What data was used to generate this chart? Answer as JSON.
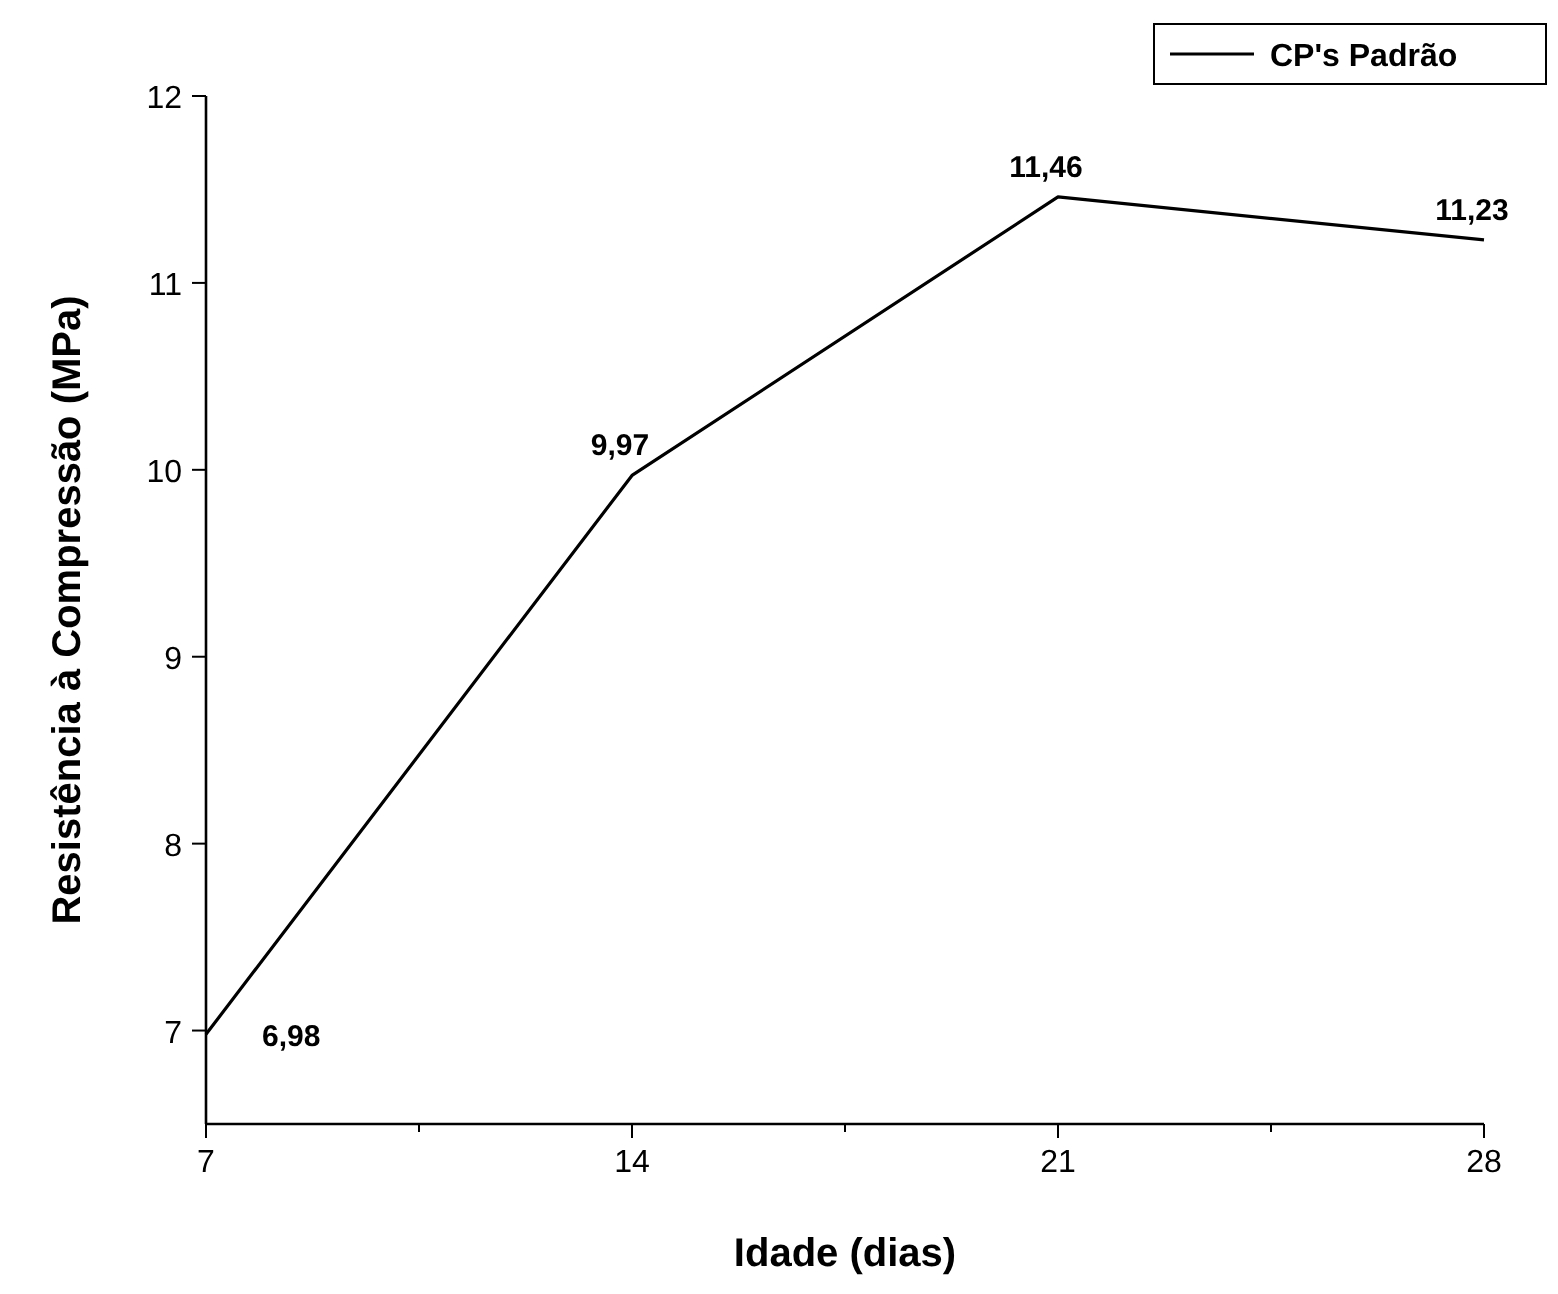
{
  "chart_data": {
    "type": "line",
    "xlabel": "Idade (dias)",
    "ylabel": "Resistência à Compressão (MPa)",
    "x": [
      7,
      14,
      21,
      28
    ],
    "series": [
      {
        "name": "CP's Padrão",
        "color": "#000000",
        "values": [
          6.98,
          9.97,
          11.46,
          11.23
        ],
        "value_labels": [
          "6,98",
          "9,97",
          "11,46",
          "11,23"
        ]
      }
    ],
    "xlim": [
      7,
      28
    ],
    "xticks": [
      7,
      {
        "value": 10.5,
        "label": null
      },
      14,
      {
        "value": 17.5,
        "label": null
      },
      21,
      {
        "value": 24.5,
        "label": null
      },
      28
    ],
    "ylim": [
      6.5,
      12
    ],
    "yticks": [
      7,
      8,
      9,
      10,
      11,
      12
    ],
    "grid": false,
    "legend": "top right",
    "marker": "none",
    "line_style": "solid"
  }
}
